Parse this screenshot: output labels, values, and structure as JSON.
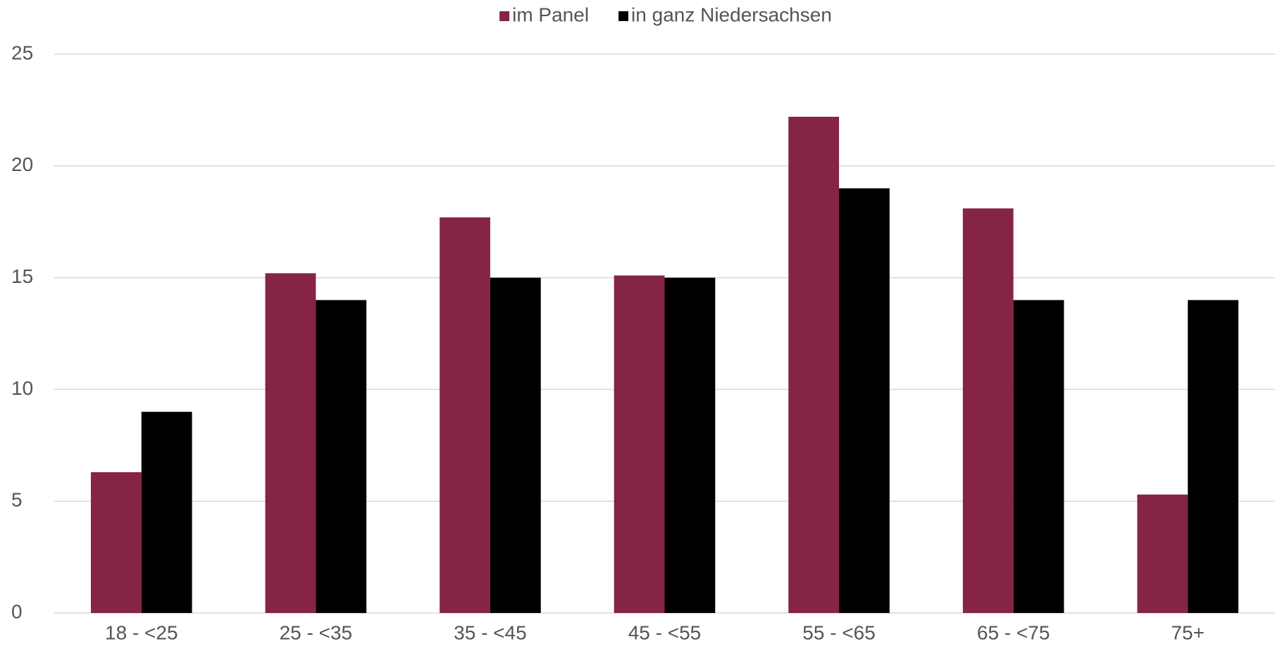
{
  "chart_data": {
    "type": "bar",
    "categories": [
      "18 - <25",
      "25 - <35",
      "35 - <45",
      "45 - <55",
      "55 - <65",
      "65 - <75",
      "75+"
    ],
    "series": [
      {
        "name": "im Panel",
        "color": "#862443",
        "values": [
          6.3,
          15.2,
          17.7,
          15.1,
          22.2,
          18.1,
          5.3
        ]
      },
      {
        "name": "in ganz Niedersachsen",
        "color": "#000000",
        "values": [
          9,
          14,
          15,
          15,
          19,
          14,
          14
        ]
      }
    ],
    "ylim": [
      0,
      25
    ],
    "yticks": [
      0,
      5,
      10,
      15,
      20,
      25
    ],
    "grid": true,
    "legend": "top"
  }
}
